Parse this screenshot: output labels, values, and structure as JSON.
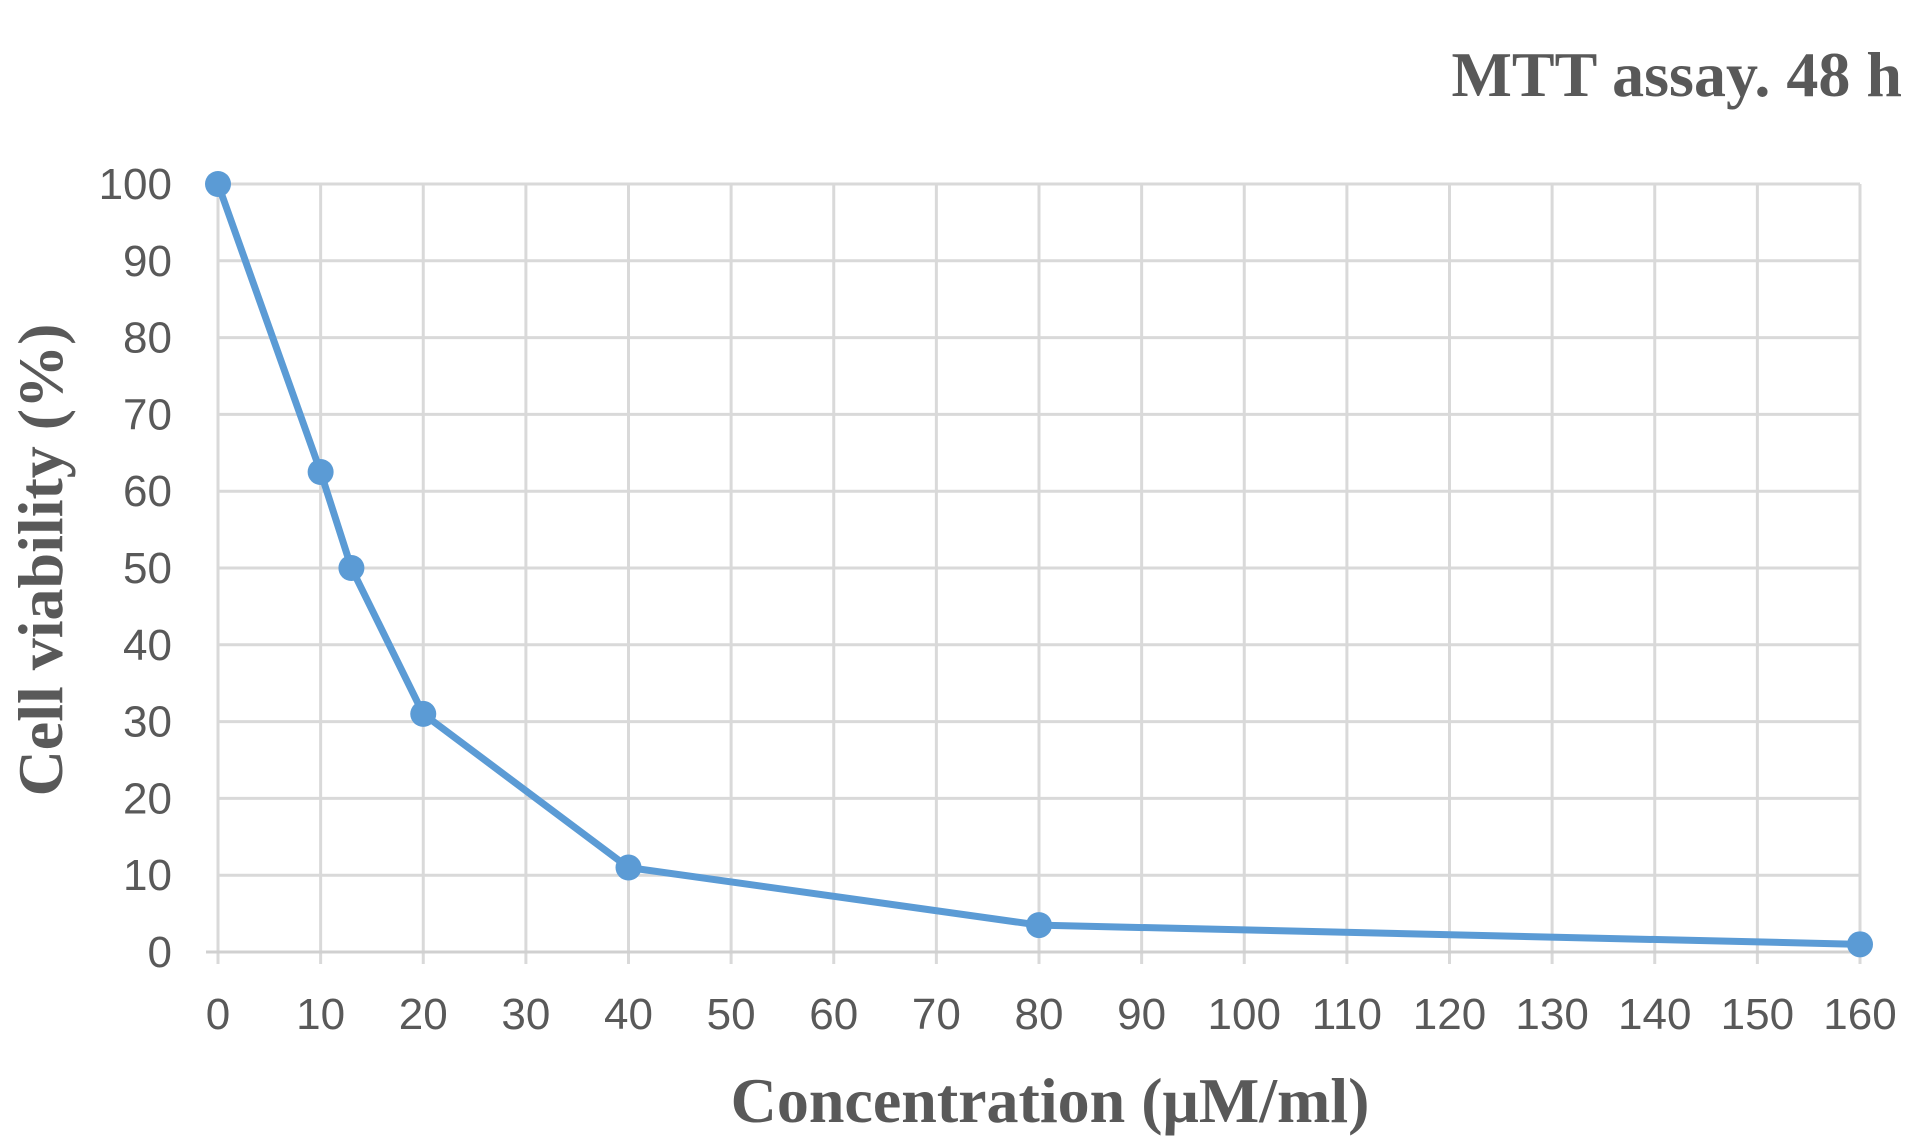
{
  "chart_data": {
    "type": "line",
    "title": "MTT assay. 48 h",
    "xlabel": "Concentration  (μM/ml)",
    "ylabel": "Cell viability  (%)",
    "xlim": [
      0,
      160
    ],
    "ylim": [
      0,
      100
    ],
    "x_ticks": [
      0,
      10,
      20,
      30,
      40,
      50,
      60,
      70,
      80,
      90,
      100,
      110,
      120,
      130,
      140,
      150,
      160
    ],
    "y_ticks": [
      0,
      10,
      20,
      30,
      40,
      50,
      60,
      70,
      80,
      90,
      100
    ],
    "grid": true,
    "legend": "none",
    "series": [
      {
        "color": "#5b9bd5",
        "points": [
          {
            "x": 0,
            "y": 100
          },
          {
            "x": 10,
            "y": 62.5
          },
          {
            "x": 13,
            "y": 50
          },
          {
            "x": 20,
            "y": 31
          },
          {
            "x": 40,
            "y": 11
          },
          {
            "x": 80,
            "y": 3.5
          },
          {
            "x": 160,
            "y": 1
          }
        ]
      }
    ]
  }
}
